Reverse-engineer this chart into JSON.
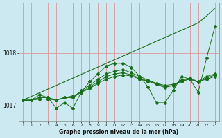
{
  "title": "Graphe pression niveau de la mer (hPa)",
  "background_color": "#cce8f0",
  "grid_color_v": "#dd8888",
  "grid_color_h": "#dd8888",
  "line_color": "#1a6e1a",
  "hours": [
    0,
    1,
    2,
    3,
    4,
    5,
    6,
    7,
    8,
    9,
    10,
    11,
    12,
    13,
    14,
    15,
    16,
    17,
    18,
    19,
    20,
    21,
    22,
    23
  ],
  "series1": [
    1017.1,
    1017.1,
    1017.2,
    1017.15,
    1016.95,
    1017.05,
    1016.95,
    1017.25,
    1017.45,
    1017.6,
    1017.75,
    1017.8,
    1017.8,
    1017.72,
    1017.55,
    1017.35,
    1017.05,
    1017.05,
    1017.28,
    1017.55,
    1017.5,
    1017.25,
    1017.9,
    1018.5
  ],
  "series2": [
    1017.1,
    1017.1,
    1017.15,
    1017.15,
    1017.1,
    1017.15,
    1017.15,
    1017.28,
    1017.38,
    1017.5,
    1017.6,
    1017.65,
    1017.68,
    1017.62,
    1017.55,
    1017.48,
    1017.42,
    1017.35,
    1017.38,
    1017.48,
    1017.52,
    1017.45,
    1017.55,
    1017.6
  ],
  "series3": [
    1017.1,
    1017.1,
    1017.15,
    1017.15,
    1017.1,
    1017.15,
    1017.15,
    1017.25,
    1017.35,
    1017.45,
    1017.55,
    1017.6,
    1017.62,
    1017.58,
    1017.52,
    1017.46,
    1017.4,
    1017.34,
    1017.38,
    1017.46,
    1017.5,
    1017.44,
    1017.52,
    1017.58
  ],
  "series4": [
    1017.1,
    1017.1,
    1017.12,
    1017.12,
    1017.1,
    1017.15,
    1017.18,
    1017.25,
    1017.32,
    1017.42,
    1017.5,
    1017.55,
    1017.58,
    1017.56,
    1017.5,
    1017.46,
    1017.42,
    1017.38,
    1017.4,
    1017.46,
    1017.5,
    1017.45,
    1017.5,
    1017.55
  ],
  "series_trend": [
    1017.1,
    1017.17,
    1017.24,
    1017.31,
    1017.38,
    1017.45,
    1017.52,
    1017.59,
    1017.66,
    1017.73,
    1017.8,
    1017.87,
    1017.94,
    1018.01,
    1018.08,
    1018.15,
    1018.22,
    1018.29,
    1018.36,
    1018.43,
    1018.5,
    1018.57,
    1018.7,
    1018.85
  ],
  "ylim": [
    1016.7,
    1018.95
  ],
  "yticks": [
    1017.0,
    1018.0
  ],
  "xlim": [
    -0.5,
    23.5
  ],
  "figsize": [
    3.2,
    2.0
  ],
  "dpi": 100
}
